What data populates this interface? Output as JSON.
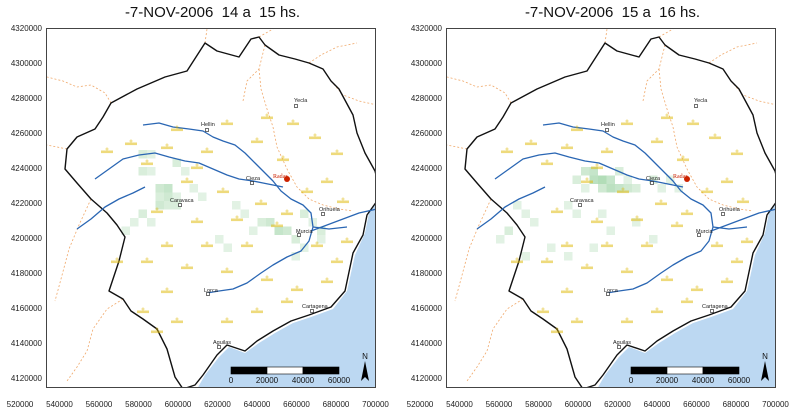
{
  "panels": [
    {
      "title": "-7-NOV-2006  14 a  15 hs.",
      "precip_cells": [
        [
          1,
          10,
          0.5
        ],
        [
          1,
          11,
          0.4
        ],
        [
          1,
          12,
          0.5
        ],
        [
          2,
          10,
          0.6
        ],
        [
          2,
          11,
          0.5
        ],
        [
          2,
          12,
          0.4
        ],
        [
          3,
          11,
          0.3
        ],
        [
          3,
          12,
          0.4
        ],
        [
          -1,
          6,
          0.4
        ],
        [
          0,
          6,
          0.3
        ],
        [
          -1,
          8,
          0.4
        ],
        [
          0,
          8,
          0.3
        ],
        [
          3,
          7,
          0.4
        ],
        [
          4,
          8,
          0.3
        ],
        [
          13,
          14,
          0.4
        ],
        [
          14,
          14,
          0.5
        ],
        [
          15,
          15,
          0.6
        ],
        [
          16,
          15,
          0.5
        ],
        [
          17,
          16,
          0.4
        ],
        [
          12,
          15,
          0.3
        ],
        [
          -2,
          14,
          0.3
        ],
        [
          -1,
          13,
          0.4
        ],
        [
          -3,
          15,
          0.3
        ],
        [
          0,
          14,
          0.3
        ],
        [
          5,
          10,
          0.3
        ],
        [
          6,
          11,
          0.3
        ],
        [
          10,
          12,
          0.3
        ],
        [
          11,
          13,
          0.3
        ],
        [
          8,
          16,
          0.3
        ],
        [
          9,
          17,
          0.3
        ],
        [
          18,
          13,
          0.4
        ],
        [
          19,
          14,
          0.3
        ],
        [
          20,
          15,
          0.4
        ],
        [
          20,
          16,
          0.3
        ],
        [
          18,
          17,
          0.3
        ],
        [
          17,
          18,
          0.3
        ]
      ],
      "radar_label": "Radar"
    },
    {
      "title": "-7-NOV-2006  15 a  16 hs.",
      "precip_cells": [
        [
          4,
          8,
          0.5
        ],
        [
          5,
          8,
          0.6
        ],
        [
          5,
          9,
          0.7
        ],
        [
          6,
          9,
          0.8
        ],
        [
          7,
          9,
          0.6
        ],
        [
          7,
          10,
          0.7
        ],
        [
          8,
          10,
          0.6
        ],
        [
          6,
          10,
          0.5
        ],
        [
          3,
          9,
          0.4
        ],
        [
          8,
          8,
          0.4
        ],
        [
          9,
          9,
          0.3
        ],
        [
          4,
          10,
          0.3
        ],
        [
          9,
          10,
          0.5
        ],
        [
          10,
          10,
          0.4
        ],
        [
          12,
          9,
          0.4
        ],
        [
          13,
          10,
          0.3
        ],
        [
          14,
          9,
          0.3
        ],
        [
          15,
          10,
          0.3
        ],
        [
          -4,
          12,
          0.3
        ],
        [
          -3,
          13,
          0.3
        ],
        [
          -2,
          14,
          0.3
        ],
        [
          -5,
          15,
          0.4
        ],
        [
          -6,
          16,
          0.3
        ],
        [
          2,
          12,
          0.3
        ],
        [
          3,
          13,
          0.3
        ],
        [
          6,
          13,
          0.3
        ],
        [
          7,
          15,
          0.3
        ],
        [
          10,
          14,
          0.3
        ],
        [
          12,
          16,
          0.3
        ],
        [
          0,
          17,
          0.3
        ],
        [
          2,
          18,
          0.3
        ],
        [
          5,
          17,
          0.3
        ],
        [
          -3,
          18,
          0.3
        ]
      ],
      "radar_label": "Radar"
    }
  ],
  "y_ticks": [
    "4320000",
    "4300000",
    "4280000",
    "4260000",
    "4240000",
    "4220000",
    "4200000",
    "4180000",
    "4160000",
    "4140000",
    "4120000"
  ],
  "x_ticks": [
    "520000",
    "540000",
    "560000",
    "580000",
    "600000",
    "620000",
    "640000",
    "660000",
    "680000",
    "700000"
  ],
  "cities": {
    "yecla": "Yecla",
    "hellin": "Hellin",
    "cieza": "Cieza",
    "caravaca": "Caravaca",
    "orihuela": "Orihuela",
    "murcia": "Murcia",
    "lorca": "Lorca",
    "cartagena": "Cartagena",
    "aguilas": "Aguilas"
  },
  "scalebar": {
    "labels": [
      "0",
      "20000",
      "40000",
      "60000"
    ]
  },
  "north_label": "N",
  "colors": {
    "sea": "#bcd8f2",
    "river": "#2a66b3",
    "basin_border": "#111111",
    "admin_border": "#f0a86a",
    "precip": "#9fd4a6",
    "station": "#e0bb10",
    "radar": "#cc2200"
  }
}
